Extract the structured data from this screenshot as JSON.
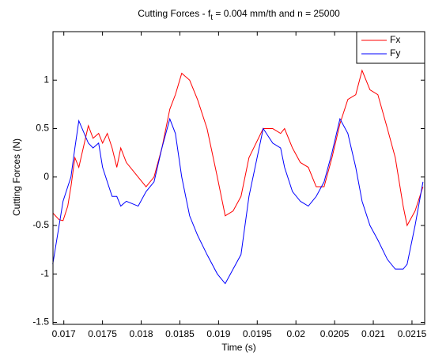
{
  "chart_data": {
    "type": "line",
    "title": {
      "parts": [
        "Cutting Forces - f",
        "t",
        " = 0.004 mm/th and n = 25000"
      ]
    },
    "x_label": "Time (s)",
    "y_label": "Cutting Forces (N)",
    "x": [
      0.016857,
      0.016939,
      0.01699,
      0.017051,
      0.017092,
      0.017143,
      0.017194,
      0.017317,
      0.017378,
      0.01745,
      0.017501,
      0.017562,
      0.017624,
      0.017685,
      0.017736,
      0.017808,
      0.017961,
      0.018063,
      0.018166,
      0.018268,
      0.01837,
      0.018442,
      0.018524,
      0.018626,
      0.018728,
      0.018851,
      0.018984,
      0.019086,
      0.019188,
      0.01929,
      0.019393,
      0.019577,
      0.0197,
      0.019802,
      0.019853,
      0.019955,
      0.020057,
      0.02016,
      0.020262,
      0.020364,
      0.020466,
      0.020569,
      0.020671,
      0.020773,
      0.020855,
      0.020957,
      0.021059,
      0.021182,
      0.021284,
      0.021386,
      0.021437,
      0.02154,
      0.021642
    ],
    "series": [
      {
        "name": "Fx",
        "color": "#ff0000",
        "values": [
          -0.37,
          -0.44,
          -0.45,
          -0.3,
          -0.1,
          0.2,
          0.1,
          0.53,
          0.4,
          0.45,
          0.35,
          0.45,
          0.3,
          0.1,
          0.3,
          0.15,
          0.0,
          -0.1,
          0.0,
          0.3,
          0.7,
          0.85,
          1.07,
          1.0,
          0.8,
          0.5,
          0.0,
          -0.4,
          -0.35,
          -0.2,
          0.2,
          0.5,
          0.5,
          0.45,
          0.5,
          0.3,
          0.15,
          0.1,
          -0.1,
          -0.1,
          0.2,
          0.55,
          0.8,
          0.85,
          1.1,
          0.9,
          0.85,
          0.5,
          0.2,
          -0.3,
          -0.5,
          -0.35,
          -0.1
        ]
      },
      {
        "name": "Fy",
        "color": "#0000ff",
        "values": [
          -0.9,
          -0.5,
          -0.25,
          -0.1,
          0.0,
          0.3,
          0.58,
          0.35,
          0.3,
          0.35,
          0.1,
          -0.05,
          -0.2,
          -0.2,
          -0.3,
          -0.25,
          -0.3,
          -0.15,
          -0.05,
          0.3,
          0.6,
          0.45,
          0.0,
          -0.4,
          -0.6,
          -0.8,
          -1.0,
          -1.1,
          -0.95,
          -0.8,
          -0.2,
          0.5,
          0.35,
          0.3,
          0.1,
          -0.15,
          -0.25,
          -0.3,
          -0.2,
          -0.05,
          0.25,
          0.6,
          0.45,
          0.1,
          -0.25,
          -0.5,
          -0.65,
          -0.85,
          -0.95,
          -0.95,
          -0.9,
          -0.5,
          -0.05
        ]
      }
    ],
    "xlim": [
      0.01686,
      0.021664
    ],
    "ylim": [
      -1.52,
      1.5
    ],
    "xticks": [
      0.017,
      0.0175,
      0.018,
      0.0185,
      0.019,
      0.0195,
      0.02,
      0.0205,
      0.021,
      0.0215
    ],
    "yticks": [
      -1.5,
      -1,
      -0.5,
      0,
      0.5,
      1
    ],
    "legend": "upper right"
  }
}
